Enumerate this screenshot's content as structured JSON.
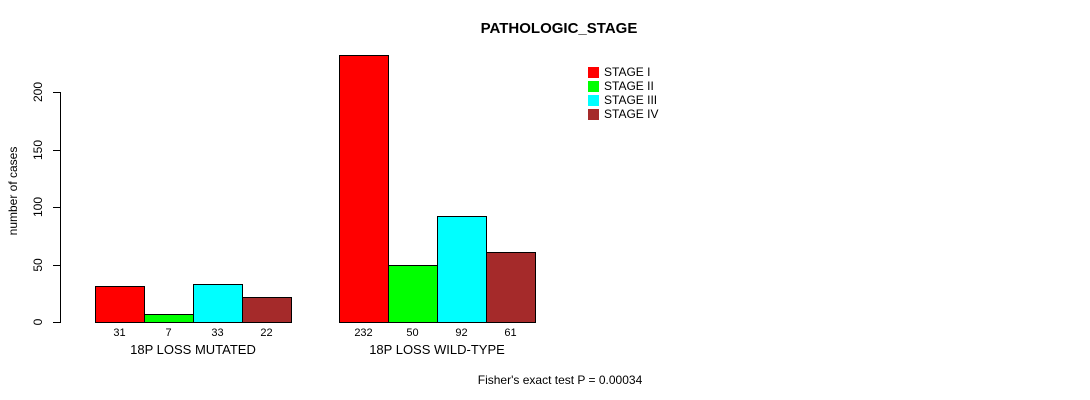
{
  "chart_data": {
    "type": "bar",
    "title": "PATHOLOGIC_STAGE",
    "ylabel": "number of cases",
    "xlabel": "",
    "ylim": [
      0,
      240
    ],
    "yticks": [
      0,
      50,
      100,
      150,
      200
    ],
    "grid": false,
    "legend_position": "top-right",
    "series": [
      {
        "name": "STAGE I",
        "color": "#ff0000"
      },
      {
        "name": "STAGE II",
        "color": "#00ff00"
      },
      {
        "name": "STAGE III",
        "color": "#00ffff"
      },
      {
        "name": "STAGE IV",
        "color": "#a52a2a"
      }
    ],
    "categories": [
      "18P LOSS MUTATED",
      "18P LOSS WILD-TYPE"
    ],
    "groups": [
      {
        "label": "18P LOSS MUTATED",
        "values": [
          31,
          7,
          33,
          22
        ]
      },
      {
        "label": "18P LOSS WILD-TYPE",
        "values": [
          232,
          50,
          92,
          61
        ]
      }
    ],
    "footer": "Fisher's exact test P = 0.00034"
  }
}
